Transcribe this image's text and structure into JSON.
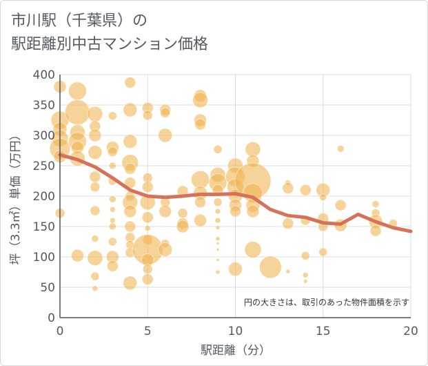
{
  "title_lines": [
    "市川駅（千葉県）の",
    "駅距離別中古マンション価格"
  ],
  "chart_data": {
    "type": "scatter",
    "xlabel": "駅距離（分）",
    "ylabel": "坪（3.3㎡）単価（万円）",
    "xlim": [
      0,
      20
    ],
    "ylim": [
      0,
      400
    ],
    "xticks": [
      0,
      5,
      10,
      15,
      20
    ],
    "yticks": [
      0,
      50,
      100,
      150,
      200,
      250,
      300,
      350,
      400
    ],
    "grid": true,
    "annotation": "円の大きさは、取引のあった物件面積を示す",
    "colors": {
      "bubble": "#f0b554",
      "trend": "#d4735a",
      "grid": "#d8dde3"
    },
    "bubbles": [
      {
        "x": 0,
        "y": 380,
        "s": 9
      },
      {
        "x": 0,
        "y": 325,
        "s": 13
      },
      {
        "x": 0,
        "y": 310,
        "s": 10
      },
      {
        "x": 0,
        "y": 295,
        "s": 12
      },
      {
        "x": 0,
        "y": 278,
        "s": 15
      },
      {
        "x": 0,
        "y": 265,
        "s": 9
      },
      {
        "x": 0,
        "y": 172,
        "s": 7
      },
      {
        "x": 1,
        "y": 373,
        "s": 13
      },
      {
        "x": 1,
        "y": 338,
        "s": 18
      },
      {
        "x": 1,
        "y": 305,
        "s": 11
      },
      {
        "x": 1,
        "y": 290,
        "s": 13
      },
      {
        "x": 1,
        "y": 280,
        "s": 9
      },
      {
        "x": 1,
        "y": 262,
        "s": 11
      },
      {
        "x": 1,
        "y": 102,
        "s": 9
      },
      {
        "x": 2,
        "y": 335,
        "s": 11
      },
      {
        "x": 2,
        "y": 315,
        "s": 8
      },
      {
        "x": 2,
        "y": 300,
        "s": 9
      },
      {
        "x": 2,
        "y": 272,
        "s": 10
      },
      {
        "x": 2,
        "y": 232,
        "s": 8
      },
      {
        "x": 2,
        "y": 215,
        "s": 7
      },
      {
        "x": 2,
        "y": 176,
        "s": 7
      },
      {
        "x": 2,
        "y": 130,
        "s": 5
      },
      {
        "x": 2,
        "y": 98,
        "s": 11
      },
      {
        "x": 2,
        "y": 68,
        "s": 6
      },
      {
        "x": 2,
        "y": 48,
        "s": 4
      },
      {
        "x": 3,
        "y": 332,
        "s": 6
      },
      {
        "x": 3,
        "y": 280,
        "s": 9
      },
      {
        "x": 3,
        "y": 273,
        "s": 7
      },
      {
        "x": 3,
        "y": 250,
        "s": 5
      },
      {
        "x": 3,
        "y": 225,
        "s": 6
      },
      {
        "x": 3,
        "y": 195,
        "s": 5
      },
      {
        "x": 3,
        "y": 178,
        "s": 4
      },
      {
        "x": 3,
        "y": 160,
        "s": 4
      },
      {
        "x": 3,
        "y": 150,
        "s": 5
      },
      {
        "x": 3,
        "y": 125,
        "s": 6
      },
      {
        "x": 3,
        "y": 100,
        "s": 9
      },
      {
        "x": 3,
        "y": 85,
        "s": 8
      },
      {
        "x": 4,
        "y": 387,
        "s": 8
      },
      {
        "x": 4,
        "y": 342,
        "s": 10
      },
      {
        "x": 4,
        "y": 290,
        "s": 10
      },
      {
        "x": 4,
        "y": 255,
        "s": 12
      },
      {
        "x": 4,
        "y": 245,
        "s": 8
      },
      {
        "x": 4,
        "y": 222,
        "s": 8
      },
      {
        "x": 4,
        "y": 200,
        "s": 7
      },
      {
        "x": 4,
        "y": 190,
        "s": 11
      },
      {
        "x": 4,
        "y": 175,
        "s": 9
      },
      {
        "x": 4,
        "y": 150,
        "s": 8
      },
      {
        "x": 4,
        "y": 132,
        "s": 7
      },
      {
        "x": 4,
        "y": 120,
        "s": 6
      },
      {
        "x": 4,
        "y": 107,
        "s": 7
      },
      {
        "x": 4,
        "y": 57,
        "s": 10
      },
      {
        "x": 5,
        "y": 345,
        "s": 8
      },
      {
        "x": 5,
        "y": 333,
        "s": 7
      },
      {
        "x": 5,
        "y": 230,
        "s": 7
      },
      {
        "x": 5,
        "y": 215,
        "s": 8
      },
      {
        "x": 5,
        "y": 190,
        "s": 11
      },
      {
        "x": 5,
        "y": 165,
        "s": 8
      },
      {
        "x": 5,
        "y": 147,
        "s": 4
      },
      {
        "x": 5,
        "y": 128,
        "s": 7
      },
      {
        "x": 5,
        "y": 112,
        "s": 22
      },
      {
        "x": 5,
        "y": 95,
        "s": 9
      },
      {
        "x": 5,
        "y": 80,
        "s": 7
      },
      {
        "x": 5,
        "y": 63,
        "s": 8
      },
      {
        "x": 6,
        "y": 342,
        "s": 8
      },
      {
        "x": 6,
        "y": 337,
        "s": 7
      },
      {
        "x": 6,
        "y": 300,
        "s": 10
      },
      {
        "x": 6,
        "y": 190,
        "s": 7
      },
      {
        "x": 6,
        "y": 175,
        "s": 9
      },
      {
        "x": 6,
        "y": 122,
        "s": 6
      },
      {
        "x": 6,
        "y": 112,
        "s": 10
      },
      {
        "x": 7,
        "y": 208,
        "s": 8
      },
      {
        "x": 7,
        "y": 172,
        "s": 7
      },
      {
        "x": 7,
        "y": 155,
        "s": 8
      },
      {
        "x": 7,
        "y": 150,
        "s": 9
      },
      {
        "x": 8,
        "y": 365,
        "s": 9
      },
      {
        "x": 8,
        "y": 358,
        "s": 11
      },
      {
        "x": 8,
        "y": 325,
        "s": 9
      },
      {
        "x": 8,
        "y": 318,
        "s": 8
      },
      {
        "x": 8,
        "y": 227,
        "s": 13
      },
      {
        "x": 8,
        "y": 205,
        "s": 10
      },
      {
        "x": 8,
        "y": 190,
        "s": 8
      },
      {
        "x": 8,
        "y": 160,
        "s": 9
      },
      {
        "x": 9,
        "y": 277,
        "s": 6
      },
      {
        "x": 9,
        "y": 235,
        "s": 11
      },
      {
        "x": 9,
        "y": 222,
        "s": 13
      },
      {
        "x": 9,
        "y": 210,
        "s": 8
      },
      {
        "x": 9,
        "y": 190,
        "s": 6
      },
      {
        "x": 9,
        "y": 175,
        "s": 4
      },
      {
        "x": 9,
        "y": 160,
        "s": 4
      },
      {
        "x": 9,
        "y": 148,
        "s": 3
      },
      {
        "x": 9,
        "y": 130,
        "s": 3
      },
      {
        "x": 9,
        "y": 122,
        "s": 2
      },
      {
        "x": 9,
        "y": 112,
        "s": 2
      },
      {
        "x": 9,
        "y": 95,
        "s": 2
      },
      {
        "x": 9,
        "y": 75,
        "s": 3
      },
      {
        "x": 10,
        "y": 250,
        "s": 11
      },
      {
        "x": 10,
        "y": 232,
        "s": 14
      },
      {
        "x": 10,
        "y": 215,
        "s": 12
      },
      {
        "x": 10,
        "y": 200,
        "s": 10
      },
      {
        "x": 10,
        "y": 185,
        "s": 9
      },
      {
        "x": 10,
        "y": 175,
        "s": 8
      },
      {
        "x": 10,
        "y": 80,
        "s": 10
      },
      {
        "x": 11,
        "y": 277,
        "s": 11
      },
      {
        "x": 11,
        "y": 258,
        "s": 9
      },
      {
        "x": 11,
        "y": 225,
        "s": 26
      },
      {
        "x": 11,
        "y": 205,
        "s": 14
      },
      {
        "x": 11,
        "y": 185,
        "s": 10
      },
      {
        "x": 11,
        "y": 175,
        "s": 9
      },
      {
        "x": 11,
        "y": 112,
        "s": 12
      },
      {
        "x": 12,
        "y": 83,
        "s": 16
      },
      {
        "x": 13,
        "y": 222,
        "s": 4
      },
      {
        "x": 13,
        "y": 213,
        "s": 8
      },
      {
        "x": 13,
        "y": 155,
        "s": 8
      },
      {
        "x": 13,
        "y": 76,
        "s": 3
      },
      {
        "x": 14,
        "y": 210,
        "s": 8
      },
      {
        "x": 14,
        "y": 160,
        "s": 7
      },
      {
        "x": 14,
        "y": 102,
        "s": 6
      },
      {
        "x": 14,
        "y": 70,
        "s": 4
      },
      {
        "x": 14,
        "y": 60,
        "s": 3
      },
      {
        "x": 15,
        "y": 210,
        "s": 10
      },
      {
        "x": 15,
        "y": 198,
        "s": 5
      },
      {
        "x": 15,
        "y": 163,
        "s": 8
      },
      {
        "x": 15,
        "y": 150,
        "s": 7
      },
      {
        "x": 15,
        "y": 108,
        "s": 6
      },
      {
        "x": 16,
        "y": 278,
        "s": 5
      },
      {
        "x": 16,
        "y": 185,
        "s": 8
      },
      {
        "x": 16,
        "y": 152,
        "s": 9
      },
      {
        "x": 18,
        "y": 187,
        "s": 5
      },
      {
        "x": 18,
        "y": 172,
        "s": 6
      },
      {
        "x": 18,
        "y": 158,
        "s": 10
      },
      {
        "x": 18,
        "y": 143,
        "s": 8
      },
      {
        "x": 19,
        "y": 155,
        "s": 6
      }
    ],
    "series": [
      {
        "type": "line",
        "x": [
          0,
          1,
          2,
          3,
          4,
          5,
          6,
          7,
          8,
          9,
          10,
          11,
          12,
          13,
          14,
          15,
          16,
          17,
          18,
          19,
          20
        ],
        "y": [
          268,
          260,
          248,
          230,
          210,
          200,
          198,
          200,
          203,
          203,
          204,
          198,
          178,
          168,
          165,
          156,
          154,
          170,
          158,
          148,
          142
        ]
      }
    ]
  }
}
